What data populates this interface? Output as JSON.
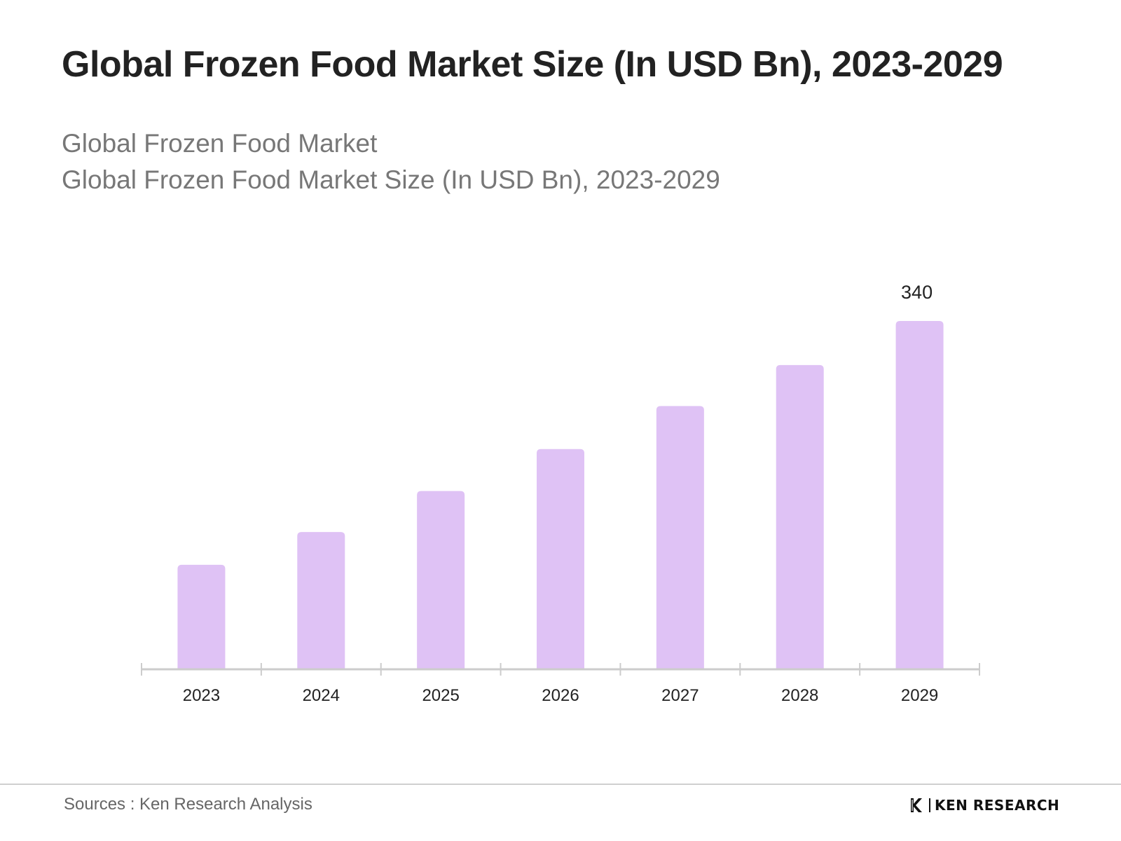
{
  "header": {
    "title": "Global Frozen Food Market Size (In USD Bn), 2023-2029",
    "subtitle_line1": "Global Frozen Food Market",
    "subtitle_line2": "Global Frozen Food Market Size (In USD Bn), 2023-2029"
  },
  "footer": {
    "source": "Sources : Ken Research Analysis",
    "brand": "KEN RESEARCH",
    "brand_icon": "ken-research-logo-icon"
  },
  "colors": {
    "bar": "#dfc2f5",
    "axis": "#cccccc",
    "label": "#222222"
  },
  "chart_data": {
    "type": "bar",
    "categories": [
      "2023",
      "2024",
      "2025",
      "2026",
      "2027",
      "2028",
      "2029"
    ],
    "values": [
      102,
      134,
      174,
      215,
      257,
      297,
      340
    ],
    "data_labels": [
      "",
      "",
      "",
      "",
      "",
      "",
      "340"
    ],
    "title": "Global Frozen Food Market Size (In USD Bn), 2023-2029",
    "xlabel": "",
    "ylabel": "",
    "ylim": [
      0,
      340
    ],
    "grid": false,
    "legend": "none"
  }
}
